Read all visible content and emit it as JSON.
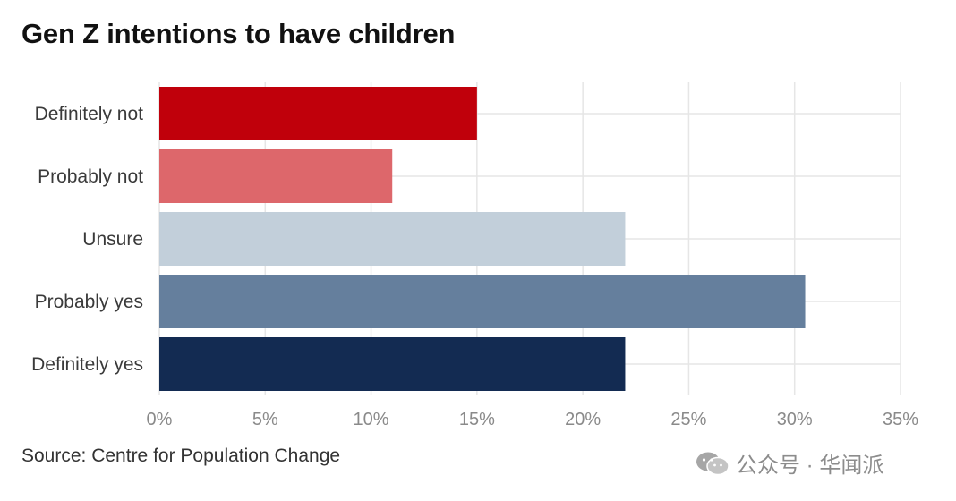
{
  "title": "Gen Z intentions to have children",
  "source": "Source: Centre for Population Change",
  "watermark": {
    "logo_icon": "wechat-icon",
    "text": "公众号 · 华闻派"
  },
  "chart_data": {
    "type": "bar",
    "orientation": "horizontal",
    "title": "Gen Z intentions to have children",
    "categories": [
      "Definitely not",
      "Probably not",
      "Unsure",
      "Probably yes",
      "Definitely yes"
    ],
    "values": [
      15,
      11,
      22,
      30.5,
      22
    ],
    "colors": [
      "#c0000b",
      "#dd676b",
      "#c2cfda",
      "#657f9d",
      "#132b52"
    ],
    "x_ticks": [
      0,
      5,
      10,
      15,
      20,
      25,
      30,
      35
    ],
    "x_tick_labels": [
      "0%",
      "5%",
      "10%",
      "15%",
      "20%",
      "25%",
      "30%",
      "35%"
    ],
    "xlim": [
      0,
      35
    ],
    "xlabel": "",
    "ylabel": "",
    "grid": true,
    "legend": "none"
  }
}
